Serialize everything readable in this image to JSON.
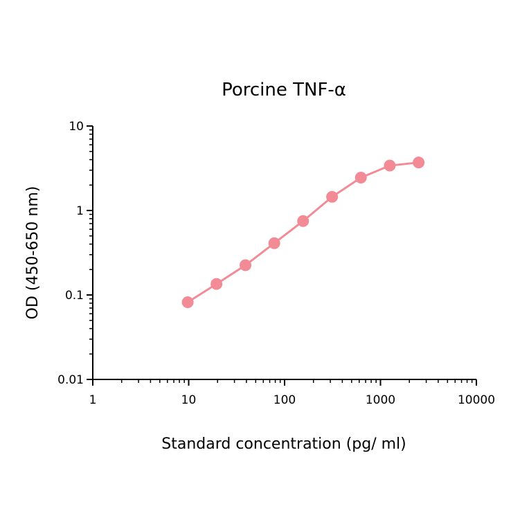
{
  "chart_data": {
    "type": "scatter",
    "title": "Porcine TNF-α",
    "xlabel": "Standard concentration (pg/ ml)",
    "ylabel": "OD (450-650 nm)",
    "x_scale": "log",
    "y_scale": "log",
    "xlim": [
      1,
      10000
    ],
    "ylim": [
      0.01,
      10
    ],
    "x_ticks": [
      "1",
      "10",
      "100",
      "1000",
      "10000"
    ],
    "y_ticks": [
      "0.01",
      "0.1",
      "1",
      "10"
    ],
    "grid": false,
    "series": [
      {
        "x": [
          9.77,
          19.5,
          39.1,
          78.1,
          156,
          313,
          625,
          1250,
          2500
        ],
        "y": [
          0.082,
          0.135,
          0.225,
          0.41,
          0.75,
          1.45,
          2.45,
          3.4,
          3.7
        ],
        "color": "#f28b96"
      }
    ]
  }
}
